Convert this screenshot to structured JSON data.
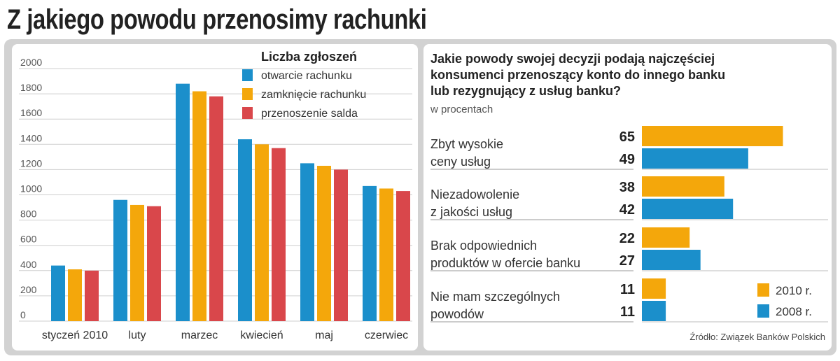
{
  "title": "Z jakiego powodu przenosimy rachunki",
  "colors": {
    "blue": "#1b8fcb",
    "orange": "#f4a70b",
    "red": "#d9474b",
    "grid": "#cfcfcf",
    "text": "#333333"
  },
  "chart_data": [
    {
      "type": "bar",
      "legend_title": "Liczba zgłoszeń",
      "legend_position": "top-right",
      "categories": [
        "styczeń 2010",
        "luty",
        "marzec",
        "kwiecień",
        "maj",
        "czerwiec"
      ],
      "series": [
        {
          "name": "otwarcie rachunku",
          "color": "#1b8fcb",
          "values": [
            440,
            960,
            1880,
            1440,
            1250,
            1070
          ]
        },
        {
          "name": "zamknięcie rachunku",
          "color": "#f4a70b",
          "values": [
            410,
            920,
            1820,
            1400,
            1230,
            1050
          ]
        },
        {
          "name": "przenoszenie salda",
          "color": "#d9474b",
          "values": [
            400,
            910,
            1780,
            1370,
            1200,
            1030
          ]
        }
      ],
      "y_ticks": [
        "0",
        "200",
        "400",
        "600",
        "800",
        "1000",
        "1200",
        "1400",
        "1600",
        "1800",
        "2000"
      ],
      "ylim": [
        0,
        2000
      ],
      "grid": true
    },
    {
      "type": "bar",
      "orientation": "horizontal",
      "title": "Jakie powody swojej decyzji podają najczęściej konsumenci przenoszący konto do innego banku lub rezygnujący z usług banku?",
      "subtitle": "w procentach",
      "categories": [
        [
          "Zbyt wysokie",
          "ceny usług"
        ],
        [
          "Niezadowolenie",
          "z jakości usług"
        ],
        [
          "Brak odpowiednich",
          "produktów w ofercie banku"
        ],
        [
          "Nie mam szczególnych",
          "powodów"
        ]
      ],
      "series": [
        {
          "name": "2010 r.",
          "color": "#f4a70b",
          "values": [
            65,
            38,
            22,
            11
          ]
        },
        {
          "name": "2008 r.",
          "color": "#1b8fcb",
          "values": [
            49,
            42,
            27,
            11
          ]
        }
      ],
      "legend_position": "bottom-right",
      "source": "Źródło: Związek Banków Polskich"
    }
  ]
}
